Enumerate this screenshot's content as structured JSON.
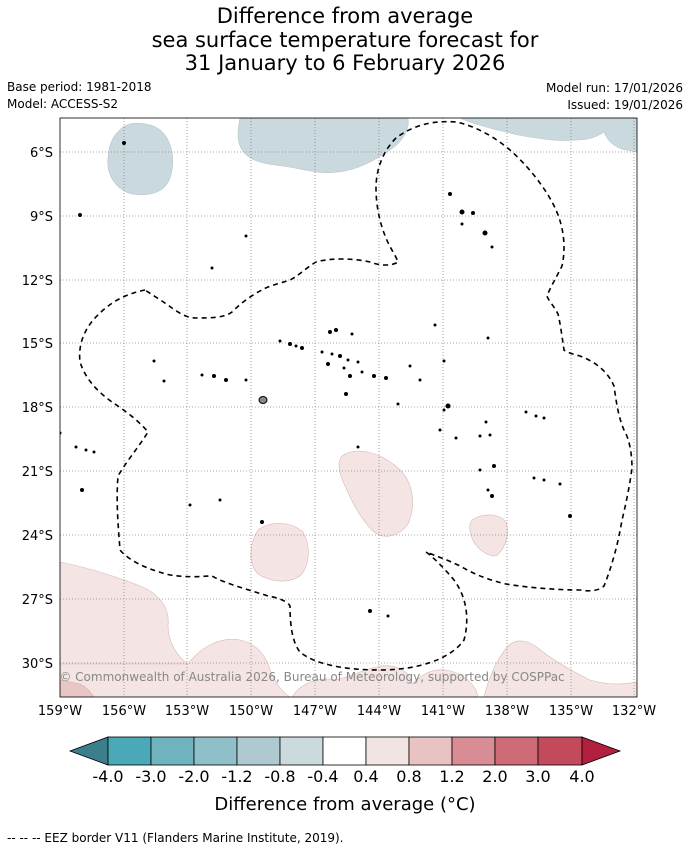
{
  "title": {
    "line1": "Difference from average",
    "line2": "sea surface temperature forecast for",
    "line3": "31 January to 6 February 2026"
  },
  "meta": {
    "base_period": "Base period: 1981-2018",
    "model": "Model: ACCESS-S2",
    "model_run": "Model run: 17/01/2026",
    "issued": "Issued: 19/01/2026"
  },
  "map": {
    "lat_labels": [
      "6°S",
      "9°S",
      "12°S",
      "15°S",
      "18°S",
      "21°S",
      "24°S",
      "27°S",
      "30°S"
    ],
    "lon_labels": [
      "159°W",
      "156°W",
      "153°W",
      "150°W",
      "147°W",
      "144°W",
      "141°W",
      "138°W",
      "135°W",
      "132°W"
    ],
    "copyright": "© Commonwealth of Australia 2026, Bureau of Meteorology, supported by COSPPac",
    "colors": {
      "cool_light": "#c9d9dd",
      "warm_light": "#f4e4e4",
      "warm_mid": "#e9c6c3"
    }
  },
  "colorbar": {
    "ticks": [
      "-4.0",
      "-3.0",
      "-2.0",
      "-1.2",
      "-0.8",
      "-0.4",
      "0.4",
      "0.8",
      "1.2",
      "2.0",
      "3.0",
      "4.0"
    ],
    "colors": [
      "#3b7f8c",
      "#4aa8b8",
      "#6fb3bf",
      "#8fbfc8",
      "#aecad0",
      "#cbdadd",
      "#ffffff",
      "#f3e4e4",
      "#e9c3c1",
      "#d88c93",
      "#cd6b77",
      "#c34a5a",
      "#b21f3f"
    ],
    "label": "Difference from average (°C)"
  },
  "footnote": "-- -- -- EEZ border V11 (Flanders Marine Institute, 2019)."
}
